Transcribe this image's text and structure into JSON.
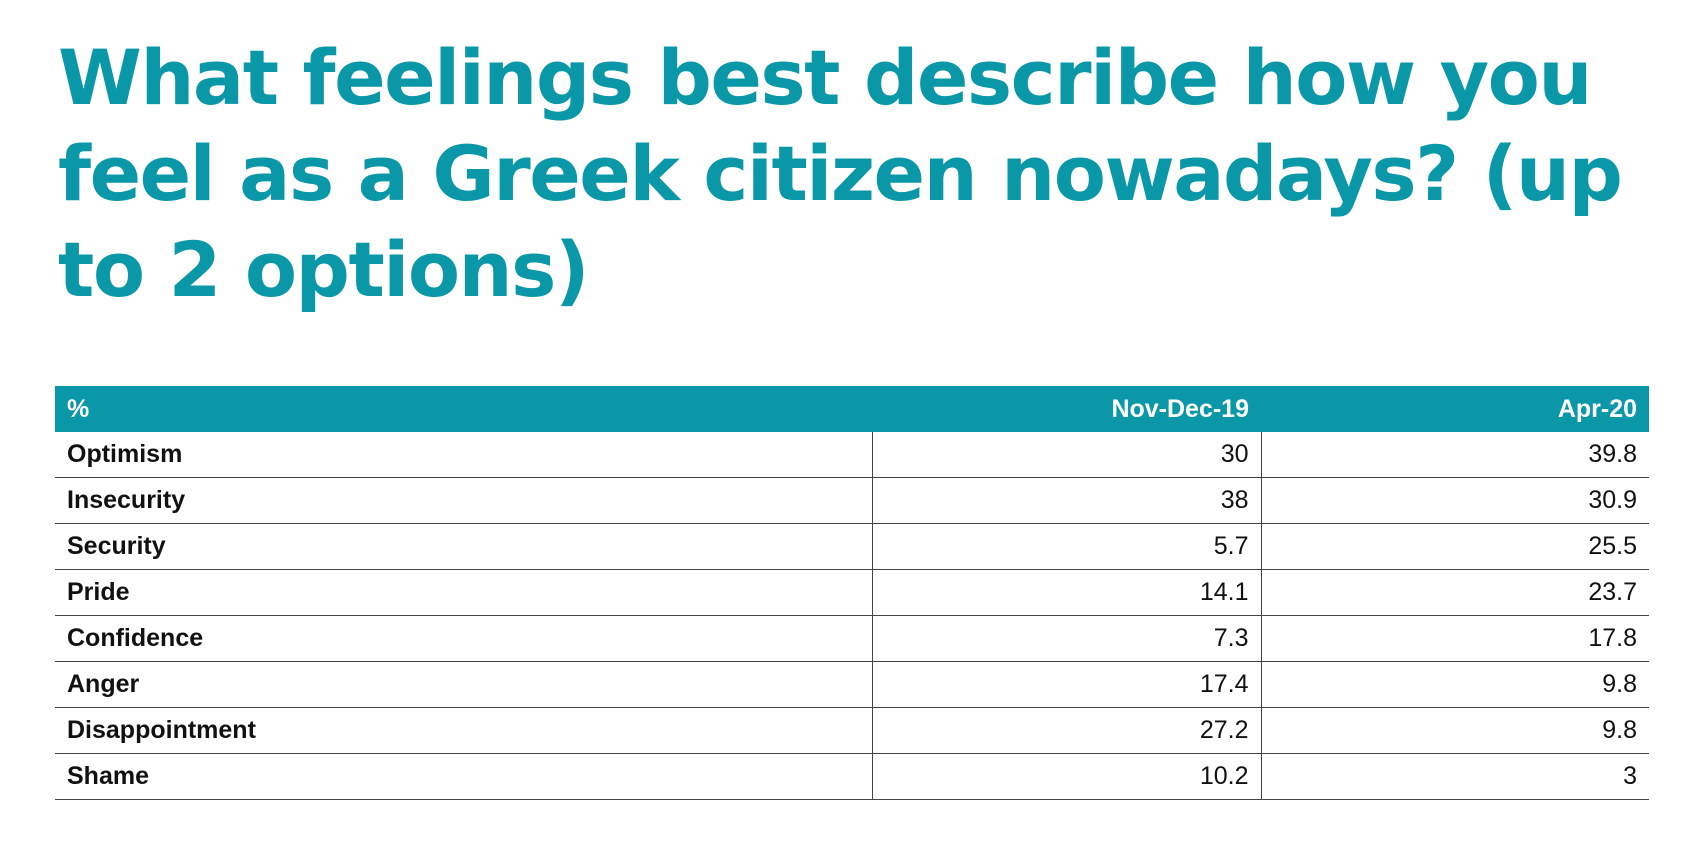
{
  "title": "What feelings best describe how you feel as a Greek citizen nowadays? (up to 2 options)",
  "chart_data": {
    "type": "table",
    "title": "What feelings best describe how you feel as a Greek citizen nowadays? (up to 2 options)",
    "header": [
      "%",
      "Nov-Dec-19",
      "Apr-20"
    ],
    "rows": [
      {
        "label": "Optimism",
        "values": [
          "30",
          "39.8"
        ]
      },
      {
        "label": "Insecurity",
        "values": [
          "38",
          "30.9"
        ]
      },
      {
        "label": "Security",
        "values": [
          "5.7",
          "25.5"
        ]
      },
      {
        "label": "Pride",
        "values": [
          "14.1",
          "23.7"
        ]
      },
      {
        "label": "Confidence",
        "values": [
          "7.3",
          "17.8"
        ]
      },
      {
        "label": "Anger",
        "values": [
          "17.4",
          "9.8"
        ]
      },
      {
        "label": "Disappointment",
        "values": [
          "27.2",
          "9.8"
        ]
      },
      {
        "label": "Shame",
        "values": [
          "10.2",
          "3"
        ]
      }
    ]
  },
  "colors": {
    "accent": "#0a97a8",
    "text": "#111111",
    "rule": "#444444"
  }
}
